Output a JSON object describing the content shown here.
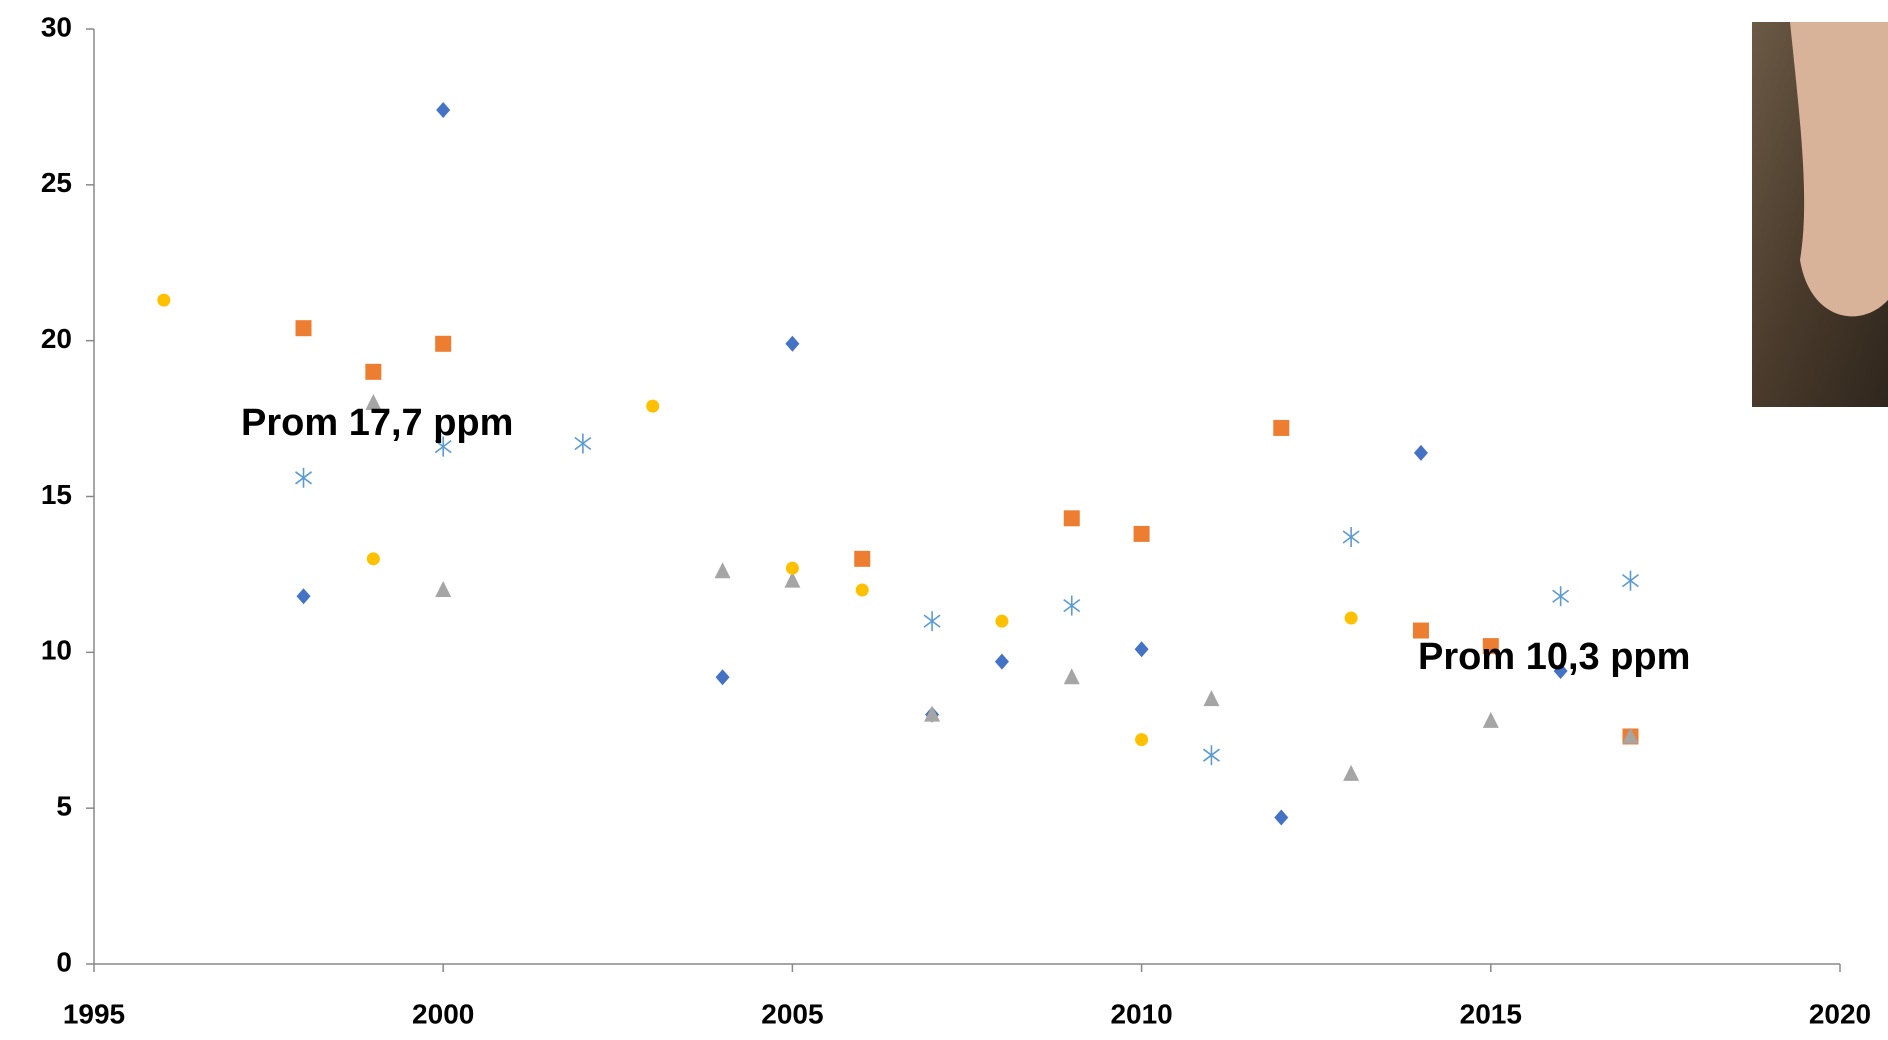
{
  "chart_data": {
    "type": "scatter",
    "annotations": [
      "Prom 17,7 ppm",
      "Prom 10,3 ppm"
    ],
    "xlim": [
      1995,
      2020
    ],
    "xticks": [
      1995,
      2000,
      2005,
      2010,
      2015,
      2020
    ],
    "ylim": [
      0,
      30
    ],
    "yticks": [
      0,
      5,
      10,
      15,
      20,
      25,
      30
    ],
    "grid": false,
    "series": [
      {
        "marker": "diamond",
        "color": "#4472c4",
        "x": [
          1998,
          2000,
          2004,
          2005,
          2007,
          2008,
          2010,
          2012,
          2014,
          2016
        ],
        "values": [
          11.8,
          27.4,
          9.2,
          19.9,
          8.0,
          9.7,
          10.1,
          4.7,
          16.4,
          9.4
        ]
      },
      {
        "marker": "square",
        "color": "#ed7d31",
        "x": [
          1998,
          1999,
          2000,
          2006,
          2009,
          2010,
          2012,
          2014,
          2015,
          2017
        ],
        "values": [
          20.4,
          19.0,
          19.9,
          13.0,
          14.3,
          13.8,
          17.2,
          10.7,
          10.2,
          7.3
        ]
      },
      {
        "marker": "triangle",
        "color": "#a5a5a5",
        "x": [
          1999,
          2000,
          2004,
          2005,
          2007,
          2009,
          2011,
          2013,
          2015,
          2017
        ],
        "values": [
          18.0,
          12.0,
          12.6,
          12.3,
          8.0,
          9.2,
          8.5,
          6.1,
          7.8,
          7.3
        ]
      },
      {
        "marker": "circle",
        "color": "#ffc000",
        "x": [
          1996,
          1999,
          2003,
          2005,
          2006,
          2008,
          2010,
          2013
        ],
        "values": [
          21.3,
          13.0,
          17.9,
          12.7,
          12.0,
          11.0,
          7.2,
          11.1
        ]
      },
      {
        "marker": "asterisk",
        "color": "#5b9bd5",
        "x": [
          1998,
          2000,
          2002,
          2007,
          2009,
          2011,
          2013,
          2016,
          2017
        ],
        "values": [
          15.6,
          16.6,
          16.7,
          11.0,
          11.5,
          6.7,
          13.7,
          11.8,
          12.3
        ]
      }
    ]
  }
}
